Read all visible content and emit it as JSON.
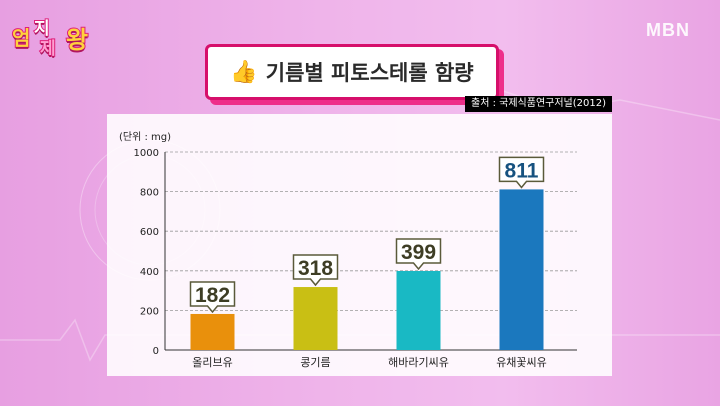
{
  "logo": {
    "c1": "엄",
    "c2": "지",
    "c3": "제",
    "c4": "왕"
  },
  "broadcaster": "MBN",
  "title": "기름별 피토스테롤 함량",
  "source": "출처 : 국제식품연구저널(2012)",
  "colors": {
    "title_border": "#d60f6b",
    "value_border": "#5a5a3a",
    "bars": [
      "#e9900c",
      "#c9bf14",
      "#19b9c4",
      "#1b78be"
    ]
  },
  "chart_data": {
    "type": "bar",
    "title": "기름별 피토스테롤 함량",
    "unit_label": "(단위 : mg)",
    "categories": [
      "올리브유",
      "콩기름",
      "해바라기씨유",
      "유채꽃씨유"
    ],
    "values": [
      182,
      318,
      399,
      811
    ],
    "ylim": [
      0,
      1000
    ],
    "yticks": [
      0,
      200,
      400,
      600,
      800,
      1000
    ],
    "grid": true,
    "data_labels": true
  }
}
